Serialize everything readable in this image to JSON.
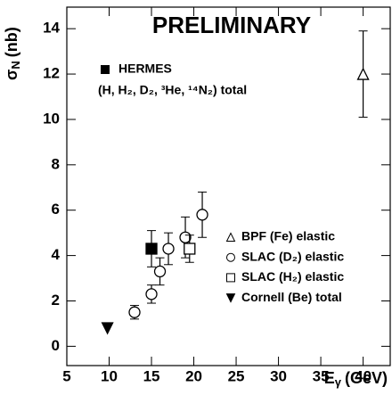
{
  "chart_data": {
    "type": "scatter",
    "annotation": "PRELIMINARY",
    "x_label": {
      "symbol": "E",
      "subscript": "γ",
      "unit": "(GeV)"
    },
    "y_label": {
      "symbol": "σ",
      "subscript": "N",
      "unit": "(nb)"
    },
    "xlim": [
      5,
      43.2
    ],
    "xticks": [
      5,
      10,
      15,
      20,
      25,
      30,
      35,
      40
    ],
    "ylim": [
      -0.85,
      14.95
    ],
    "yticks": [
      0,
      2,
      4,
      6,
      8,
      10,
      12,
      14
    ],
    "series": [
      {
        "name": "HERMES",
        "note": "(H, H₂, D₂, ³He, ¹⁴N₂) total",
        "marker": "square-filled",
        "color": "#000000",
        "x": [
          15
        ],
        "values": [
          4.3
        ],
        "errors": [
          0.8
        ]
      },
      {
        "name": "BPF (Fe) elastic",
        "marker": "triangle-up",
        "color": "#000000",
        "x": [
          40
        ],
        "values": [
          12
        ],
        "errors": [
          1.9
        ]
      },
      {
        "name": "SLAC (D₂) elastic",
        "marker": "circle",
        "color": "#000000",
        "x": [
          13,
          15,
          16,
          17,
          19,
          21
        ],
        "values": [
          1.5,
          2.3,
          3.3,
          4.3,
          4.8,
          5.8
        ],
        "errors": [
          0.3,
          0.4,
          0.6,
          0.7,
          0.9,
          1.0
        ]
      },
      {
        "name": "SLAC (H₂) elastic",
        "marker": "square",
        "color": "#000000",
        "x": [
          19.5
        ],
        "values": [
          4.3
        ],
        "errors": [
          0.6
        ]
      },
      {
        "name": "Cornell (Be) total",
        "marker": "triangle-down-filled",
        "color": "#000000",
        "x": [
          9.8
        ],
        "values": [
          0.8
        ]
      }
    ]
  }
}
